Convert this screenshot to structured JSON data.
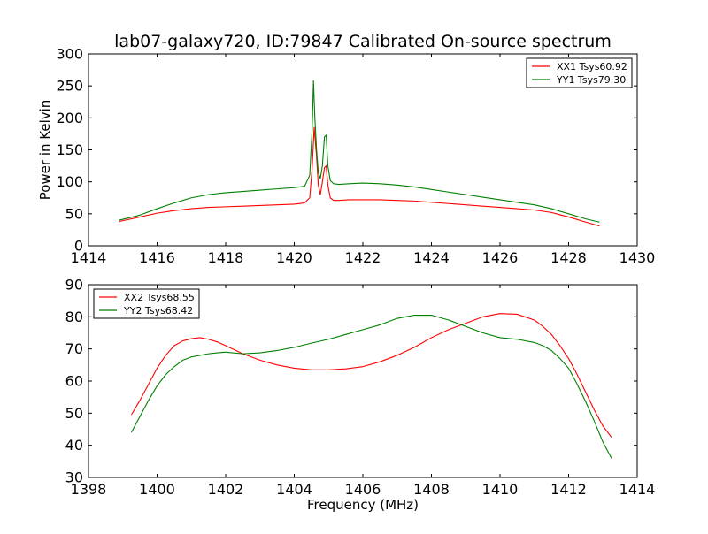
{
  "figure": {
    "title": "lab07-galaxy720, ID:79847 Calibrated On-source spectrum"
  },
  "chart_data": [
    {
      "type": "line",
      "title": "lab07-galaxy720, ID:79847 Calibrated On-source spectrum",
      "xlabel": "",
      "ylabel": "Power in Kelvin",
      "xlim": [
        1414,
        1430
      ],
      "ylim": [
        0,
        300
      ],
      "xticks": [
        1414,
        1416,
        1418,
        1420,
        1422,
        1424,
        1426,
        1428,
        1430
      ],
      "yticks": [
        0,
        50,
        100,
        150,
        200,
        250,
        300
      ],
      "grid": false,
      "legend": "top-right",
      "series": [
        {
          "name": "XX1 Tsys60.92",
          "color": "#ff0000",
          "x": [
            1414.9,
            1415.5,
            1416.0,
            1416.5,
            1417.0,
            1417.5,
            1418.0,
            1418.5,
            1419.0,
            1419.5,
            1420.0,
            1420.3,
            1420.45,
            1420.52,
            1420.58,
            1420.65,
            1420.7,
            1420.76,
            1420.82,
            1420.88,
            1420.93,
            1420.98,
            1421.05,
            1421.15,
            1421.3,
            1421.6,
            1422.0,
            1422.5,
            1423.0,
            1423.5,
            1424.0,
            1424.5,
            1425.0,
            1425.5,
            1426.0,
            1426.5,
            1427.0,
            1427.5,
            1428.0,
            1428.5,
            1428.9
          ],
          "values": [
            38,
            45,
            51,
            55,
            58,
            60,
            61,
            62,
            63,
            64,
            65,
            67,
            75,
            120,
            185,
            140,
            95,
            80,
            100,
            122,
            125,
            95,
            75,
            71,
            71,
            72,
            72,
            72,
            71,
            70,
            68,
            66,
            64,
            62,
            60,
            58,
            56,
            52,
            45,
            37,
            31
          ]
        },
        {
          "name": "YY1 Tsys79.30",
          "color": "#008000",
          "x": [
            1414.9,
            1415.5,
            1416.0,
            1416.5,
            1417.0,
            1417.5,
            1418.0,
            1418.5,
            1419.0,
            1419.5,
            1420.0,
            1420.3,
            1420.45,
            1420.52,
            1420.56,
            1420.6,
            1420.65,
            1420.7,
            1420.76,
            1420.82,
            1420.88,
            1420.93,
            1420.98,
            1421.05,
            1421.15,
            1421.3,
            1421.6,
            1422.0,
            1422.5,
            1423.0,
            1423.5,
            1424.0,
            1424.5,
            1425.0,
            1425.5,
            1426.0,
            1426.5,
            1427.0,
            1427.5,
            1428.0,
            1428.5,
            1428.9
          ],
          "values": [
            40,
            48,
            58,
            67,
            75,
            80,
            83,
            85,
            87,
            89,
            91,
            93,
            110,
            180,
            258,
            200,
            150,
            115,
            105,
            125,
            170,
            173,
            125,
            102,
            97,
            96,
            97,
            98,
            97,
            95,
            92,
            88,
            84,
            80,
            76,
            72,
            68,
            64,
            58,
            50,
            42,
            37
          ]
        }
      ]
    },
    {
      "type": "line",
      "title": "",
      "xlabel": "Frequency (MHz)",
      "ylabel": "",
      "xlim": [
        1398,
        1414
      ],
      "ylim": [
        30,
        90
      ],
      "xticks": [
        1398,
        1400,
        1402,
        1404,
        1406,
        1408,
        1410,
        1412,
        1414
      ],
      "yticks": [
        30,
        40,
        50,
        60,
        70,
        80,
        90
      ],
      "grid": false,
      "legend": "top-left",
      "series": [
        {
          "name": "XX2 Tsys68.55",
          "color": "#ff0000",
          "x": [
            1399.25,
            1399.5,
            1399.75,
            1400.0,
            1400.25,
            1400.5,
            1400.75,
            1401.0,
            1401.25,
            1401.5,
            1401.75,
            1402.0,
            1402.5,
            1403.0,
            1403.5,
            1404.0,
            1404.5,
            1405.0,
            1405.5,
            1406.0,
            1406.5,
            1407.0,
            1407.5,
            1408.0,
            1408.5,
            1409.0,
            1409.5,
            1410.0,
            1410.5,
            1411.0,
            1411.25,
            1411.5,
            1411.75,
            1412.0,
            1412.25,
            1412.5,
            1412.75,
            1413.0,
            1413.25
          ],
          "values": [
            49.5,
            54,
            59,
            64,
            68,
            71,
            72.5,
            73.2,
            73.5,
            73,
            72.2,
            71,
            68.5,
            66.5,
            65,
            64,
            63.5,
            63.5,
            63.8,
            64.5,
            66,
            68,
            70.5,
            73.5,
            76,
            78,
            80,
            81,
            80.8,
            79,
            77,
            74.5,
            71,
            67,
            62,
            56.5,
            51,
            46,
            42.5
          ]
        },
        {
          "name": "YY2 Tsys68.42",
          "color": "#008000",
          "x": [
            1399.25,
            1399.5,
            1399.75,
            1400.0,
            1400.25,
            1400.5,
            1400.75,
            1401.0,
            1401.25,
            1401.5,
            1401.75,
            1402.0,
            1402.5,
            1403.0,
            1403.5,
            1404.0,
            1404.5,
            1405.0,
            1405.5,
            1406.0,
            1406.5,
            1407.0,
            1407.5,
            1408.0,
            1408.5,
            1409.0,
            1409.5,
            1410.0,
            1410.5,
            1411.0,
            1411.25,
            1411.5,
            1411.75,
            1412.0,
            1412.25,
            1412.5,
            1412.75,
            1413.0,
            1413.25
          ],
          "values": [
            44,
            49,
            54,
            58.5,
            62,
            64.5,
            66.5,
            67.5,
            68,
            68.5,
            68.8,
            69,
            68.5,
            68.8,
            69.5,
            70.5,
            71.8,
            73,
            74.5,
            76,
            77.5,
            79.5,
            80.5,
            80.5,
            79,
            77,
            75,
            73.5,
            73,
            72,
            71,
            69.5,
            67,
            64,
            59,
            53.5,
            47.5,
            41,
            36
          ]
        }
      ]
    }
  ]
}
